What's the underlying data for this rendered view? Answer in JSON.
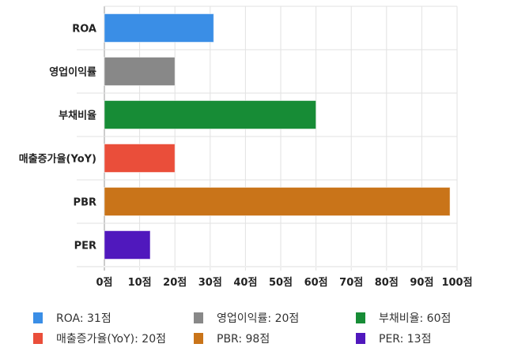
{
  "chart_data": {
    "type": "bar",
    "orientation": "horizontal",
    "categories": [
      "ROA",
      "영업이익률",
      "부채비율",
      "매출증가율(YoY)",
      "PBR",
      "PER"
    ],
    "values": [
      31,
      20,
      60,
      20,
      98,
      13
    ],
    "colors": [
      "#3a8ee6",
      "#888888",
      "#178c36",
      "#ea4e3a",
      "#c97419",
      "#5018bd"
    ],
    "xlim": [
      0,
      100
    ],
    "xticks": [
      0,
      10,
      20,
      30,
      40,
      50,
      60,
      70,
      80,
      90,
      100
    ],
    "xtick_labels": [
      "0점",
      "10점",
      "20점",
      "30점",
      "40점",
      "50점",
      "60점",
      "70점",
      "80점",
      "90점",
      "100점"
    ],
    "grid": true,
    "legend_position": "bottom",
    "legend": [
      "ROA: 31점",
      "영업이익률: 20점",
      "부채비율: 60점",
      "매출증가율(YoY): 20점",
      "PBR: 98점",
      "PER: 13점"
    ]
  }
}
